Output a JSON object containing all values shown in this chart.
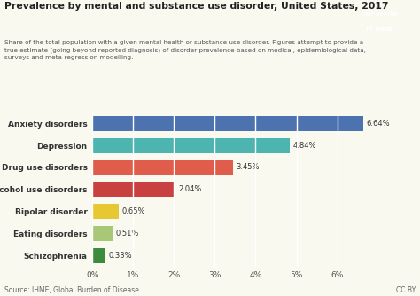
{
  "title": "Prevalence by mental and substance use disorder, United States, 2017",
  "subtitle": "Share of the total population with a given mental health or substance use disorder. Figures attempt to provide a\ntrue estimate (going beyond reported diagnosis) of disorder prevalence based on medical, epidemiological data,\nsurveys and meta-regression modelling.",
  "categories": [
    "Anxiety disorders",
    "Depression",
    "Drug use disorders",
    "Alcohol use disorders",
    "Bipolar disorder",
    "Eating disorders",
    "Schizophrenia"
  ],
  "values": [
    6.64,
    4.84,
    3.45,
    2.04,
    0.65,
    0.51,
    0.33
  ],
  "bar_colors": [
    "#4c72b0",
    "#4db5b0",
    "#e05c4b",
    "#c94040",
    "#e8c832",
    "#a8c878",
    "#3d8c3d"
  ],
  "value_labels": [
    "6.64%",
    "4.84%",
    "3.45%",
    "2.04%",
    "0.65%",
    "0.51%",
    "0.33%"
  ],
  "xlim": [
    0,
    7.0
  ],
  "xticks": [
    0,
    1,
    2,
    3,
    4,
    5,
    6
  ],
  "xtick_labels": [
    "0%",
    "1%",
    "2%",
    "3%",
    "4%",
    "5%",
    "6%"
  ],
  "source_text": "Source: IHME, Global Burden of Disease",
  "cc_text": "CC BY",
  "bg_color": "#f9f9f0",
  "bar_height": 0.68
}
